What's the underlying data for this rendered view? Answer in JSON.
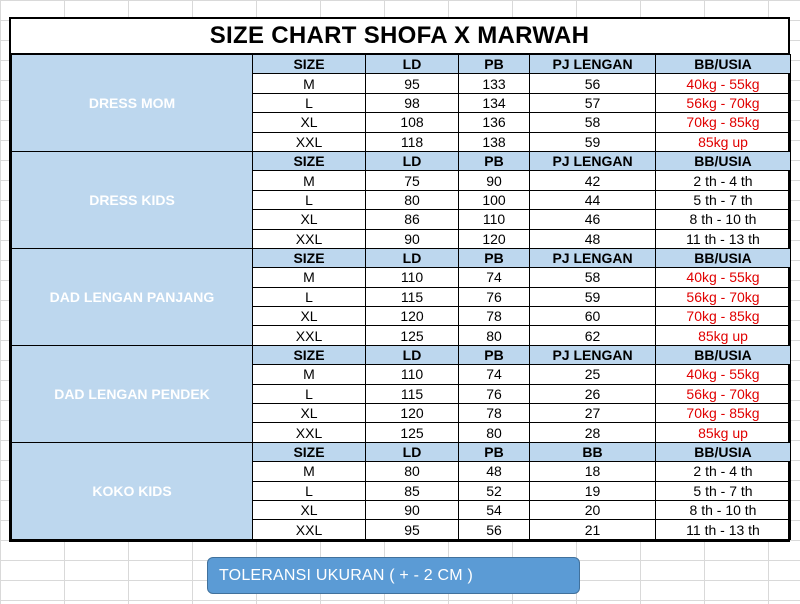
{
  "title": "SIZE CHART SHOFA X MARWAH",
  "headers": [
    "SIZE",
    "LD",
    "PB",
    "PJ LENGAN",
    "BB/USIA"
  ],
  "colors": {
    "section_bg": "#2f6db5",
    "header_bg": "#bdd7ee",
    "highlight_text": "#e00000"
  },
  "sections": [
    {
      "name": "DRESS MOM",
      "headers": [
        "SIZE",
        "LD",
        "PB",
        "PJ LENGAN",
        "BB/USIA"
      ],
      "rows": [
        {
          "size": "M",
          "ld": "95",
          "pb": "133",
          "lengan": "56",
          "bb": "40kg - 55kg",
          "red": true
        },
        {
          "size": "L",
          "ld": "98",
          "pb": "134",
          "lengan": "57",
          "bb": "56kg - 70kg",
          "red": true
        },
        {
          "size": "XL",
          "ld": "108",
          "pb": "136",
          "lengan": "58",
          "bb": "70kg - 85kg",
          "red": true
        },
        {
          "size": "XXL",
          "ld": "118",
          "pb": "138",
          "lengan": "59",
          "bb": "85kg up",
          "red": true
        }
      ]
    },
    {
      "name": "DRESS KIDS",
      "headers": [
        "SIZE",
        "LD",
        "PB",
        "PJ LENGAN",
        "BB/USIA"
      ],
      "rows": [
        {
          "size": "M",
          "ld": "75",
          "pb": "90",
          "lengan": "42",
          "bb": "2 th - 4 th",
          "red": false
        },
        {
          "size": "L",
          "ld": "80",
          "pb": "100",
          "lengan": "44",
          "bb": "5 th - 7 th",
          "red": false
        },
        {
          "size": "XL",
          "ld": "86",
          "pb": "110",
          "lengan": "46",
          "bb": "8 th - 10 th",
          "red": false
        },
        {
          "size": "XXL",
          "ld": "90",
          "pb": "120",
          "lengan": "48",
          "bb": "11 th - 13 th",
          "red": false
        }
      ]
    },
    {
      "name": "DAD LENGAN PANJANG",
      "headers": [
        "SIZE",
        "LD",
        "PB",
        "PJ LENGAN",
        "BB/USIA"
      ],
      "rows": [
        {
          "size": "M",
          "ld": "110",
          "pb": "74",
          "lengan": "58",
          "bb": "40kg - 55kg",
          "red": true
        },
        {
          "size": "L",
          "ld": "115",
          "pb": "76",
          "lengan": "59",
          "bb": "56kg - 70kg",
          "red": true
        },
        {
          "size": "XL",
          "ld": "120",
          "pb": "78",
          "lengan": "60",
          "bb": "70kg - 85kg",
          "red": true
        },
        {
          "size": "XXL",
          "ld": "125",
          "pb": "80",
          "lengan": "62",
          "bb": "85kg up",
          "red": true
        }
      ]
    },
    {
      "name": "DAD LENGAN PENDEK",
      "headers": [
        "SIZE",
        "LD",
        "PB",
        "PJ LENGAN",
        "BB/USIA"
      ],
      "rows": [
        {
          "size": "M",
          "ld": "110",
          "pb": "74",
          "lengan": "25",
          "bb": "40kg - 55kg",
          "red": true
        },
        {
          "size": "L",
          "ld": "115",
          "pb": "76",
          "lengan": "26",
          "bb": "56kg - 70kg",
          "red": true
        },
        {
          "size": "XL",
          "ld": "120",
          "pb": "78",
          "lengan": "27",
          "bb": "70kg - 85kg",
          "red": true
        },
        {
          "size": "XXL",
          "ld": "125",
          "pb": "80",
          "lengan": "28",
          "bb": "85kg up",
          "red": true
        }
      ]
    },
    {
      "name": "KOKO KIDS",
      "headers": [
        "SIZE",
        "LD",
        "PB",
        "BB",
        "BB/USIA"
      ],
      "rows": [
        {
          "size": "M",
          "ld": "80",
          "pb": "48",
          "lengan": "18",
          "bb": "2 th - 4 th",
          "red": false
        },
        {
          "size": "L",
          "ld": "85",
          "pb": "52",
          "lengan": "19",
          "bb": "5 th - 7 th",
          "red": false
        },
        {
          "size": "XL",
          "ld": "90",
          "pb": "54",
          "lengan": "20",
          "bb": "8 th - 10 th",
          "red": false
        },
        {
          "size": "XXL",
          "ld": "95",
          "pb": "56",
          "lengan": "21",
          "bb": "11 th - 13 th",
          "red": false
        }
      ]
    }
  ],
  "tolerance": "TOLERANSI UKURAN  ( + - 2 CM )"
}
